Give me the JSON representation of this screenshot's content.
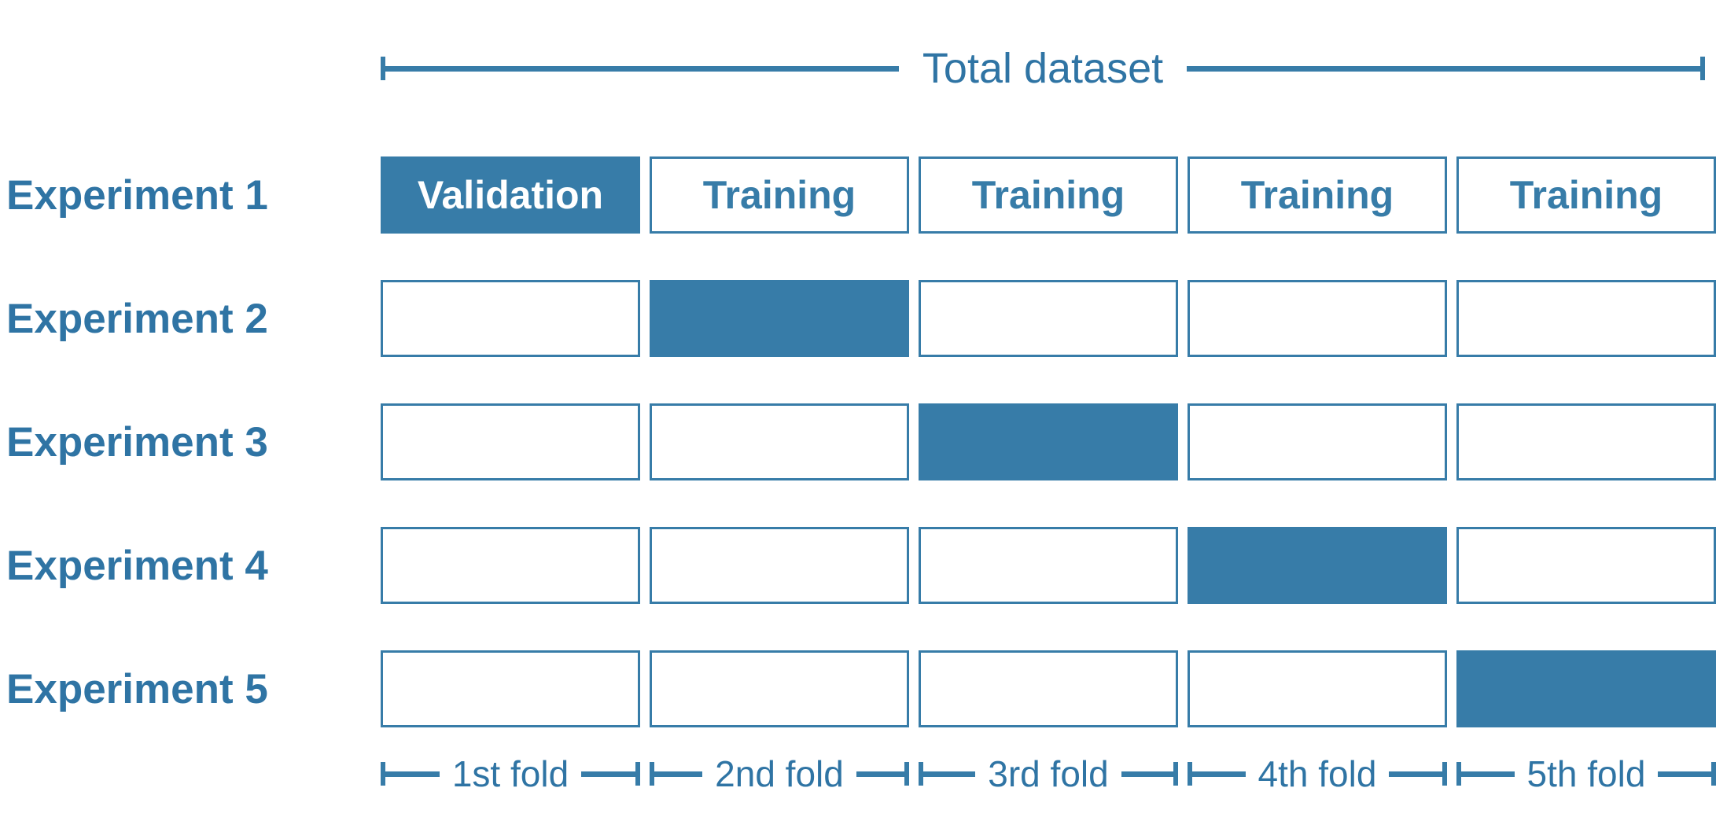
{
  "theme": {
    "accent": "#377CA8",
    "text": "#2F74A4"
  },
  "diagram": {
    "title": "Total dataset",
    "folds": [
      "1st fold",
      "2nd fold",
      "3rd fold",
      "4th fold",
      "5th fold"
    ],
    "rows": [
      {
        "label": "Experiment 1",
        "cells": [
          {
            "state": "filled",
            "text": "Validation"
          },
          {
            "state": "empty",
            "text": "Training"
          },
          {
            "state": "empty",
            "text": "Training"
          },
          {
            "state": "empty",
            "text": "Training"
          },
          {
            "state": "empty",
            "text": "Training"
          }
        ]
      },
      {
        "label": "Experiment 2",
        "cells": [
          {
            "state": "empty",
            "text": ""
          },
          {
            "state": "filled",
            "text": ""
          },
          {
            "state": "empty",
            "text": ""
          },
          {
            "state": "empty",
            "text": ""
          },
          {
            "state": "empty",
            "text": ""
          }
        ]
      },
      {
        "label": "Experiment 3",
        "cells": [
          {
            "state": "empty",
            "text": ""
          },
          {
            "state": "empty",
            "text": ""
          },
          {
            "state": "filled",
            "text": ""
          },
          {
            "state": "empty",
            "text": ""
          },
          {
            "state": "empty",
            "text": ""
          }
        ]
      },
      {
        "label": "Experiment 4",
        "cells": [
          {
            "state": "empty",
            "text": ""
          },
          {
            "state": "empty",
            "text": ""
          },
          {
            "state": "empty",
            "text": ""
          },
          {
            "state": "filled",
            "text": ""
          },
          {
            "state": "empty",
            "text": ""
          }
        ]
      },
      {
        "label": "Experiment 5",
        "cells": [
          {
            "state": "empty",
            "text": ""
          },
          {
            "state": "empty",
            "text": ""
          },
          {
            "state": "empty",
            "text": ""
          },
          {
            "state": "empty",
            "text": ""
          },
          {
            "state": "filled",
            "text": ""
          }
        ]
      }
    ]
  }
}
